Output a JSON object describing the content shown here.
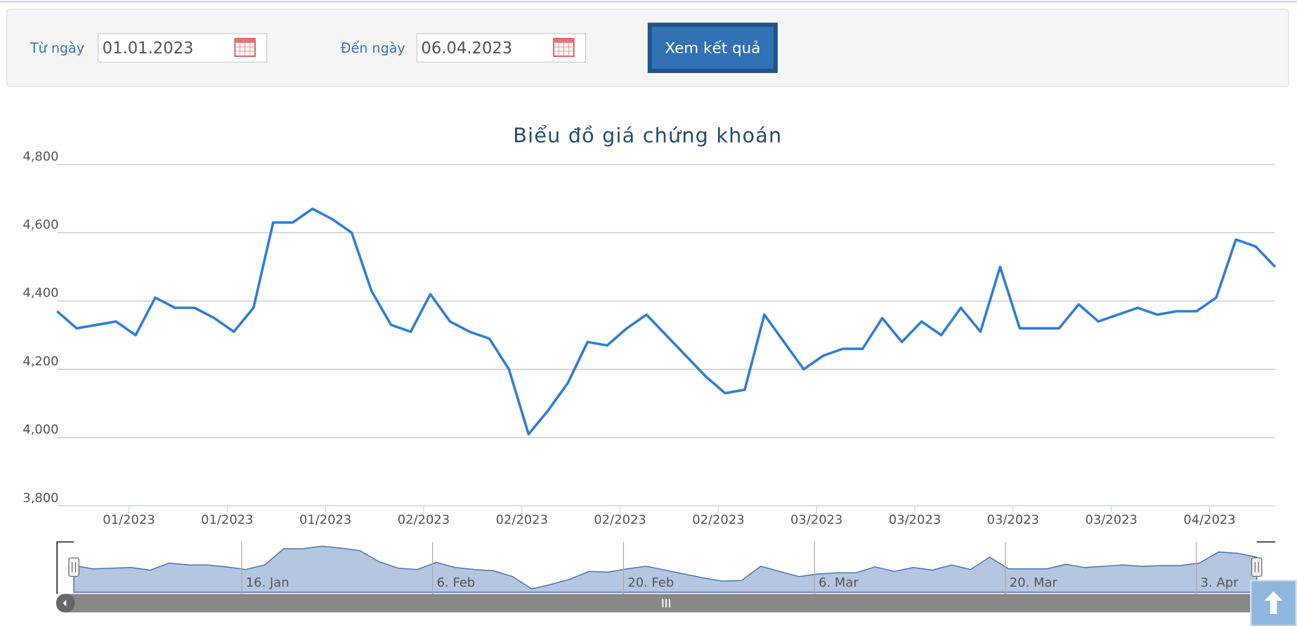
{
  "form": {
    "from_label": "Từ ngày",
    "from_value": "01.01.2023",
    "to_label": "Đến ngày",
    "to_value": "06.04.2023",
    "button": "Xem kết quả"
  },
  "chart_data": {
    "type": "line",
    "title": "Biểu đồ giá chứng khoán",
    "categories": [
      null,
      null,
      null,
      null,
      "01/2023",
      null,
      null,
      null,
      null,
      "01/2023",
      null,
      null,
      null,
      null,
      "01/2023",
      null,
      null,
      null,
      null,
      "02/2023",
      null,
      null,
      null,
      null,
      "02/2023",
      null,
      null,
      null,
      null,
      "02/2023",
      null,
      null,
      null,
      null,
      "02/2023",
      null,
      null,
      null,
      null,
      "03/2023",
      null,
      null,
      null,
      null,
      "03/2023",
      null,
      null,
      null,
      null,
      "03/2023",
      null,
      null,
      null,
      null,
      "03/2023",
      null,
      null,
      null,
      null,
      "04/2023",
      null,
      null,
      null
    ],
    "values": [
      4370,
      4320,
      4330,
      4340,
      4300,
      4410,
      4380,
      4380,
      4350,
      4310,
      4380,
      4630,
      4630,
      4670,
      4640,
      4600,
      4430,
      4330,
      4310,
      4420,
      4340,
      4310,
      4290,
      4200,
      4010,
      4080,
      4160,
      4280,
      4270,
      4320,
      4360,
      4300,
      4240,
      4180,
      4130,
      4140,
      4360,
      4280,
      4200,
      4240,
      4260,
      4260,
      4350,
      4280,
      4340,
      4300,
      4380,
      4310,
      4500,
      4320,
      4320,
      4320,
      4390,
      4340,
      4360,
      4380,
      4360,
      4370,
      4370,
      4410,
      4580,
      4560,
      4500
    ],
    "color": "#2f7ed8",
    "ylim": [
      3800,
      4800
    ],
    "yticks": [
      {
        "value": 3800,
        "label": "3,800"
      },
      {
        "value": 4000,
        "label": "4,000"
      },
      {
        "value": 4200,
        "label": "4,200"
      },
      {
        "value": 4400,
        "label": "4,400"
      },
      {
        "value": 4600,
        "label": "4,600"
      },
      {
        "value": 4800,
        "label": "4,800"
      }
    ],
    "grid": true,
    "navigator_labels": [
      "16. Jan",
      "6. Feb",
      "20. Feb",
      "6. Mar",
      "20. Mar",
      "3. Apr"
    ]
  }
}
